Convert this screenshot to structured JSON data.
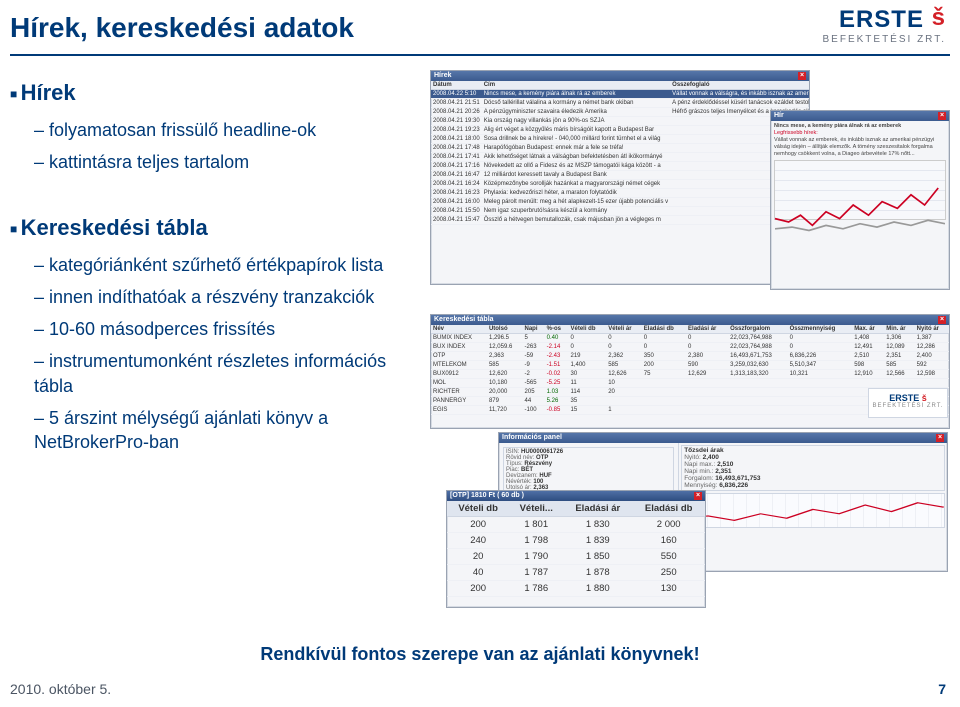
{
  "page_title": "Hírek, kereskedési adatok",
  "logo": {
    "brand": "ERSTE",
    "sub": "BEFEKTETÉSI ZRT."
  },
  "bullets": {
    "group1": {
      "title": "Hírek",
      "items": [
        "folyamatosan frissülő headline-ok",
        "kattintásra teljes tartalom"
      ]
    },
    "group2": {
      "title": "Kereskedési tábla",
      "items": [
        "kategóriánként szűrhető értékpapírok lista",
        "innen indíthatóak a részvény tranzakciók",
        "10-60 másodperces frissítés",
        "instrumentumonként részletes információs tábla",
        "5 árszint mélységű ajánlati könyv a NetBrokerPro-ban"
      ]
    }
  },
  "footer_note": "Rendkívül fontos szerepe van az ajánlati könyvnek!",
  "footer_date": "2010. október 5.",
  "page_number": "7",
  "news_panel": {
    "title": "Hírek",
    "cols": [
      "Dátum",
      "Cím",
      "Összefoglaló"
    ],
    "selected_row": [
      "2008.04.22 5:10",
      "Nincs mese, a kemény piára álnak rá az emberek",
      "Vállat vonnak a válságra, és inkább isznak az amerikai..."
    ],
    "rows": [
      [
        "2008.04.21 21:51",
        "Döcső tallérillat válalina a kormány a német bank okiban",
        "A pénz érdeklődéssel küsérl tanácsok ezáldet testold kedden ..."
      ],
      [
        "2008.04.21 20:26",
        "A pénzügyminiszter szavaira éledezik Amerika",
        "Héfrő grászos teljes Imenyélcet és a kereskedés első ö ..."
      ],
      [
        "2008.04.21 19:30",
        "Kia ország nagy villankás jön a 90%-os SZJA",
        ""
      ],
      [
        "2008.04.21 19:23",
        "Alig ért véget a közgyűlés máris bírságóit kapott a Budapest Bar",
        ""
      ],
      [
        "2008.04.21 18:00",
        "Sosa drillnek be a hírekre! - 040,000 millárd forint türnhet el a világ",
        ""
      ],
      [
        "2008.04.21 17:48",
        "Harapófógóban Budapest: ennek már a fele se tréfa!",
        ""
      ],
      [
        "2008.04.21 17:41",
        "Akik lehetőséget látnak a válságban befektetésben átl ikökormányé",
        ""
      ],
      [
        "2008.04.21 17:16",
        "Növekedett az ollő a Fidesz és az MSZP támogatói kága között - a",
        ""
      ],
      [
        "2008.04.21 16:47",
        "12 milliárdot keressett tavaly a Budapest Bank",
        ""
      ],
      [
        "2008.04.21 16:24",
        "Középmezőnybe sorollják hazánkat a magyarországi német cégek",
        ""
      ],
      [
        "2008.04.21 16:23",
        "Phylaxia: kedvezőriszl héter, a maraton folytatódik",
        ""
      ],
      [
        "2008.04.21 16:00",
        "Meleg párolt menült: meg a hét alapkezelt-15 ezer újabb potenciális v",
        ""
      ],
      [
        "2008.04.21 15:50",
        "Nem igaz szuperbrutó!sásra készül a kormány",
        ""
      ],
      [
        "2008.04.21 15:47",
        "Összlő a hétvegen bemutallozák, csak májusban jön a végleges m",
        ""
      ]
    ]
  },
  "detail_panel": {
    "title": "Nincs mese, a kemény piára álnak rá az emberek",
    "sub": "Legfrissebb hírek:",
    "body": "Vállat vonnak az emberek, és inkább isznak az amerikai pénzügyi válság idején – állítják elemzők. A tömény szeszesitalok forgalma nemhogy csökkent volna, a Diageo árbevétele 17% nőtt..."
  },
  "trading_panel": {
    "title": "Kereskedési tábla",
    "cols": [
      "Név",
      "Utolsó",
      "Napi",
      "%-os",
      "Vételi db",
      "Vételi ár",
      "Eladási db",
      "Eladási ár",
      "Összforgalom",
      "Összmennyiség",
      "Max. ár",
      "Min. ár",
      "Nyitó ár"
    ],
    "rows": [
      [
        "BUMIX INDEX",
        "1,296.5",
        "5",
        "0.40",
        "0",
        "0",
        "0",
        "0",
        "22,023,764,988",
        "0",
        "1,408",
        "1,306",
        "1,387"
      ],
      [
        "BUX INDEX",
        "12,059.6",
        "-263",
        "-2.14",
        "0",
        "0",
        "0",
        "0",
        "22,023,764,988",
        "0",
        "12,491",
        "12,089",
        "12,286"
      ],
      [
        "OTP",
        "2,363",
        "-59",
        "-2.43",
        "219",
        "2,362",
        "350",
        "2,380",
        "16,493,671,753",
        "6,836,226",
        "2,510",
        "2,351",
        "2,400"
      ],
      [
        "MTELEKOM",
        "585",
        "-9",
        "-1.51",
        "1,400",
        "585",
        "200",
        "590",
        "3,259,032,630",
        "5,510,347",
        "598",
        "585",
        "592"
      ],
      [
        "BUX0912",
        "12,620",
        "-2",
        "-0.02",
        "30",
        "12,626",
        "75",
        "12,629",
        "1,313,183,320",
        "10,321",
        "12,910",
        "12,566",
        "12,598"
      ],
      [
        "MOL",
        "10,180",
        "-565",
        "-5.25",
        "11",
        "10",
        "",
        "",
        "",
        "",
        "",
        "",
        ""
      ],
      [
        "RICHTER",
        "20,000",
        "205",
        "1.03",
        "114",
        "20",
        "",
        "",
        "",
        "",
        "",
        "",
        ""
      ],
      [
        "PANNERGY",
        "879",
        "44",
        "5.26",
        "35",
        "",
        "",
        "",
        "",
        "",
        "",
        "",
        ""
      ],
      [
        "EGIS",
        "11,720",
        "-100",
        "-0.85",
        "15",
        "1",
        "",
        "",
        "",
        "",
        "",
        "",
        ""
      ]
    ]
  },
  "info_panel": {
    "title": "Információs panel",
    "rowsL": [
      [
        "ISIN",
        "HU0000061726"
      ],
      [
        "Rövid név",
        "OTP"
      ],
      [
        "Típus",
        "Részvény"
      ],
      [
        "Piac",
        "BÉT"
      ],
      [
        "Devizanem",
        "HUF"
      ],
      [
        "Névérték",
        "100"
      ],
      [
        "Utolsó ár",
        "2,363"
      ],
      [
        "Napi vált.",
        "-59 (-2.43%)"
      ]
    ],
    "groupR_title": "Tőzsdei árak",
    "rowsR": [
      [
        "Nyitó",
        "2,400"
      ],
      [
        "Napi max.",
        "2,510"
      ],
      [
        "Napi min.",
        "2,351"
      ],
      [
        "Forgalom",
        "16,493,671,753"
      ],
      [
        "Mennyiség",
        "6,836,226"
      ]
    ]
  },
  "orderbook": {
    "title": "[OTP] 1810 Ft ( 60 db )",
    "cols": [
      "Vételi db",
      "Vételi...",
      "Eladási ár",
      "Eladási db"
    ],
    "rows": [
      [
        "200",
        "1 801",
        "1 830",
        "2 000"
      ],
      [
        "240",
        "1 798",
        "1 839",
        "160"
      ],
      [
        "20",
        "1 790",
        "1 850",
        "550"
      ],
      [
        "40",
        "1 787",
        "1 878",
        "250"
      ],
      [
        "200",
        "1 786",
        "1 880",
        "130"
      ]
    ]
  }
}
